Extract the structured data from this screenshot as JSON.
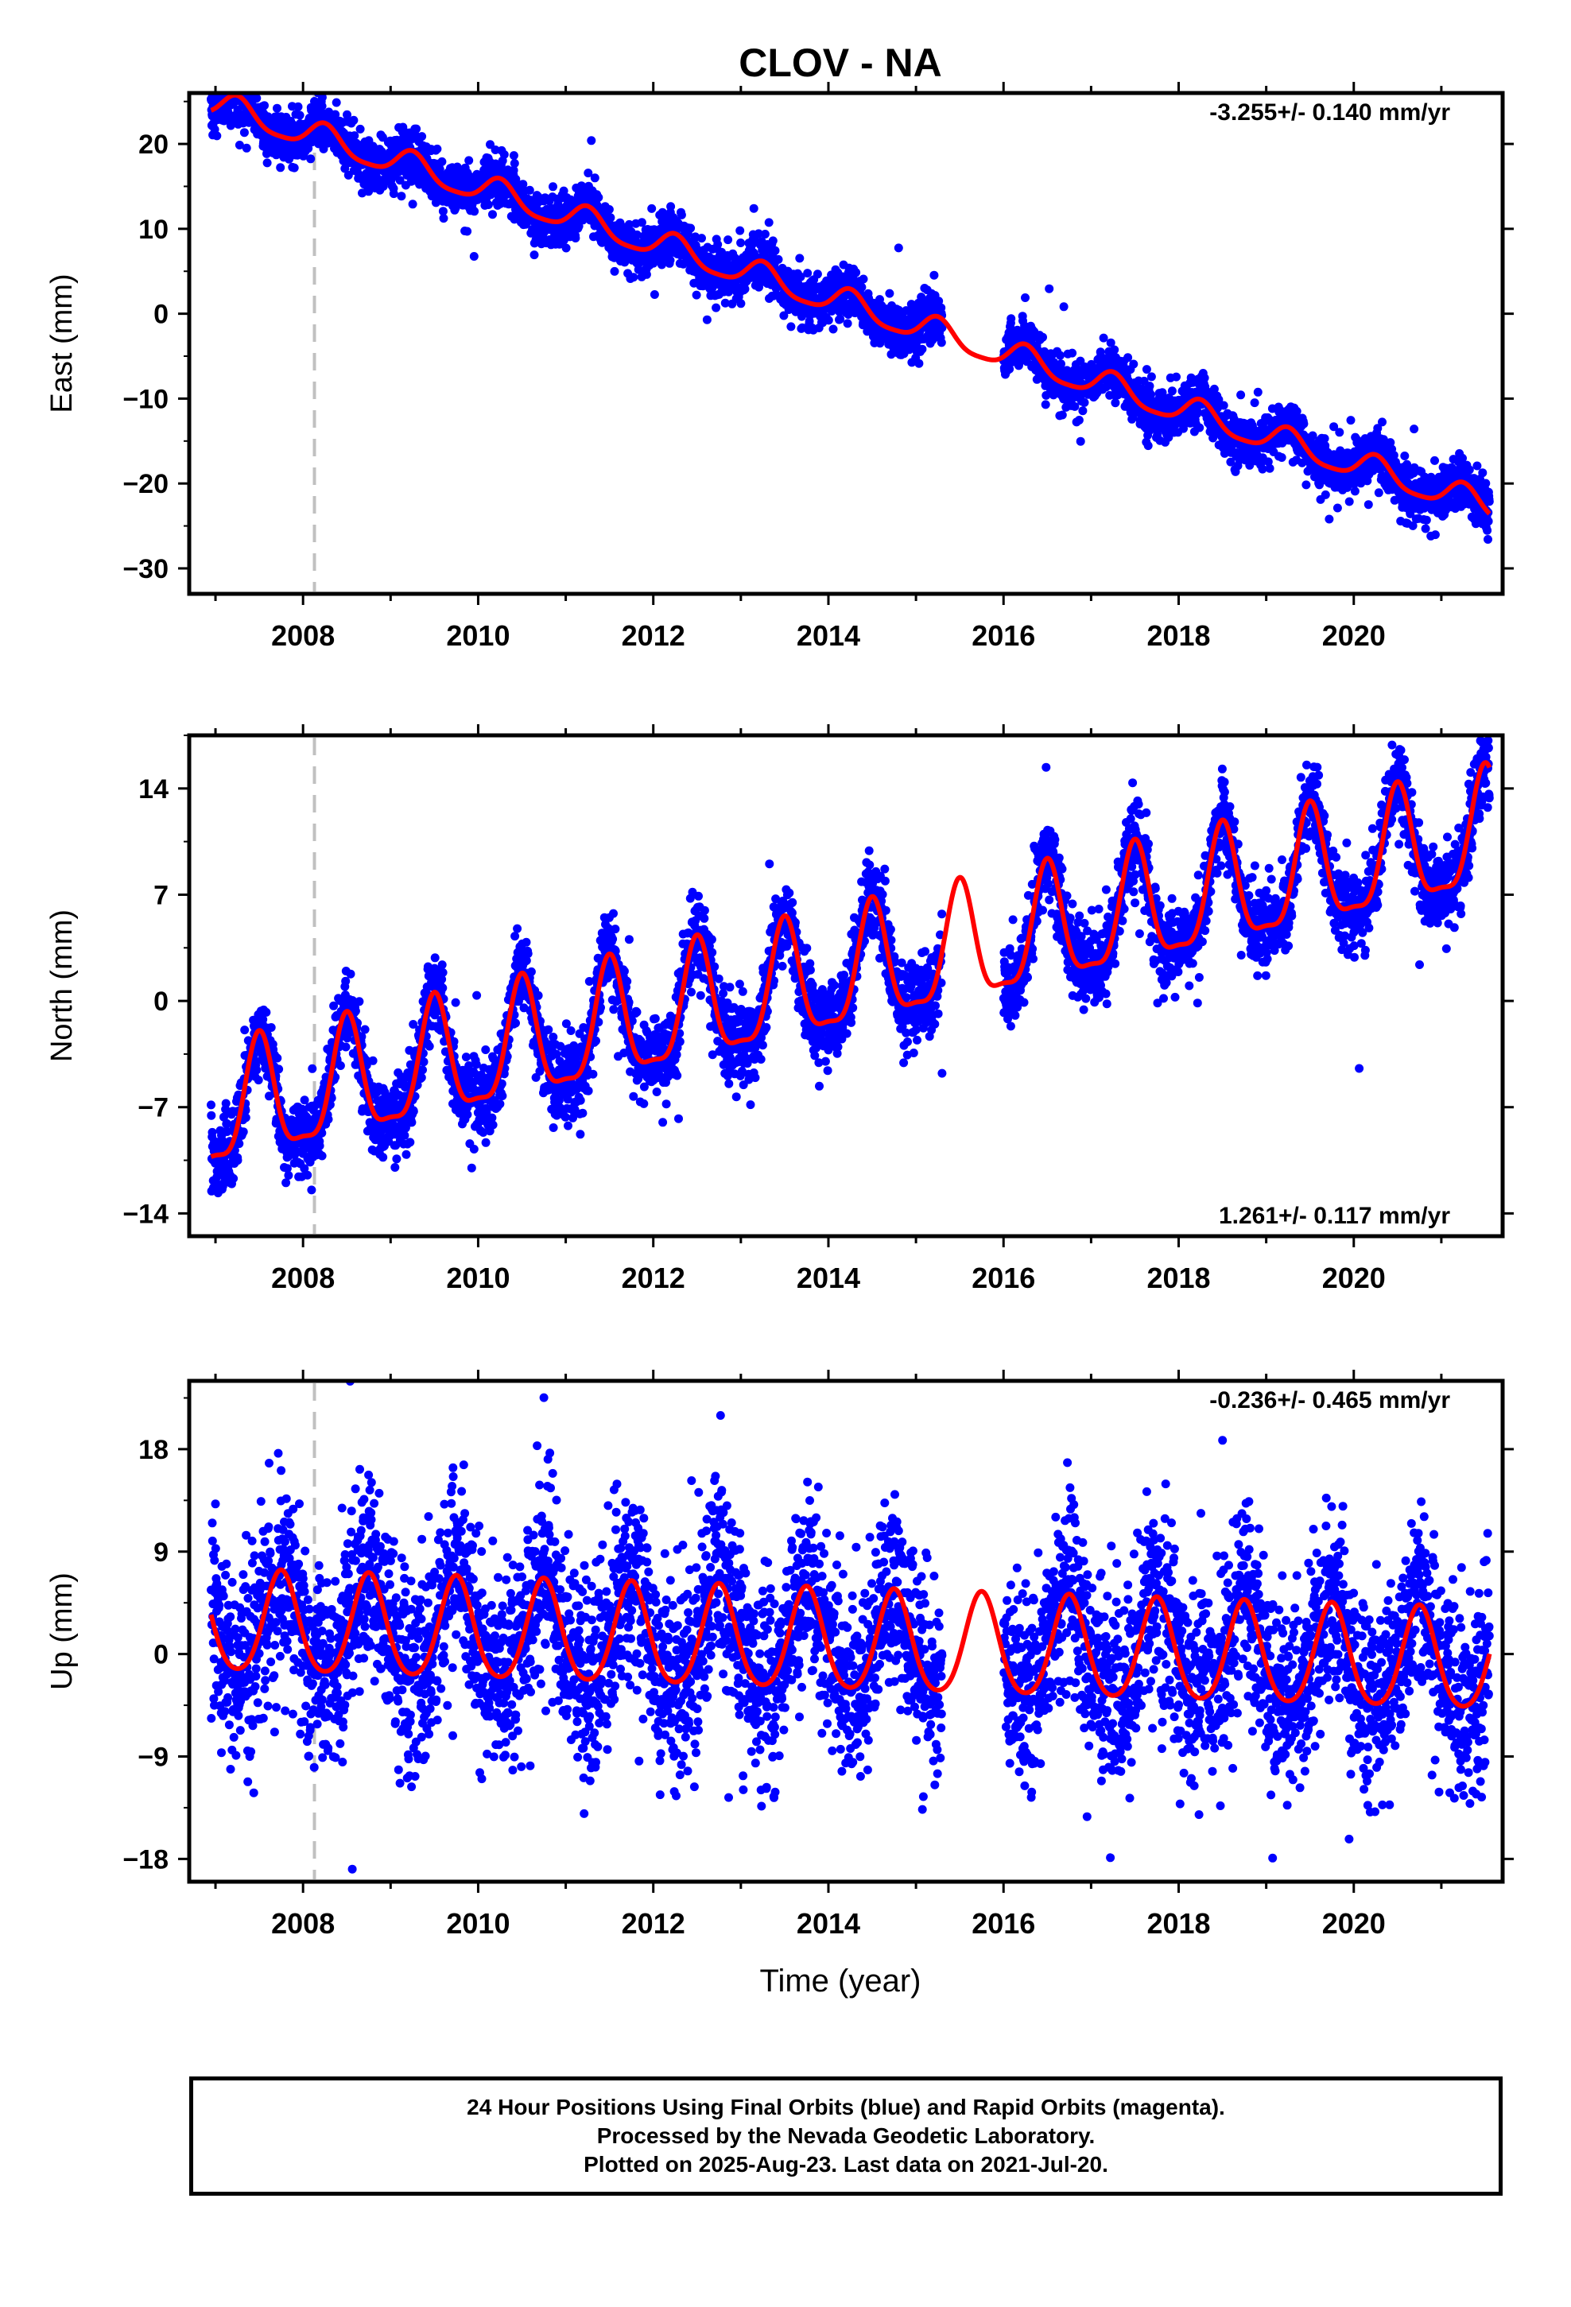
{
  "title": "CLOV - NA",
  "xlabel": "Time (year)",
  "colors": {
    "points": "#0000ff",
    "model": "#ff0000",
    "rapid": "#ff00ff",
    "event_line": "#c0c0c0",
    "axis": "#000000"
  },
  "caption": {
    "line1": "24 Hour Positions Using Final Orbits (blue) and Rapid Orbits (magenta).",
    "line2": "Processed by the Nevada Geodetic Laboratory.",
    "line3": "Plotted on 2025-Aug-23. Last data on 2021-Jul-20."
  },
  "chart_data": [
    {
      "type": "scatter",
      "component": "East",
      "ylabel": "East (mm)",
      "rate_label": "-3.255+/- 0.140 mm/yr",
      "xlim": [
        2006.7,
        2021.7
      ],
      "ylim": [
        -33,
        26
      ],
      "xticks": [
        2008,
        2010,
        2012,
        2014,
        2016,
        2018,
        2020
      ],
      "yticks": [
        20,
        10,
        0,
        -10,
        -20,
        -30
      ],
      "event_line_x": 2008.13,
      "data_gap": [
        2015.3,
        2016.0
      ],
      "model": {
        "offset": 24.9,
        "trend_mm_per_yr": -3.255,
        "t0": 2006.9,
        "annual_amp": 1.6,
        "annual_phase_year": 0.25,
        "semiannual_amp": 0.35
      },
      "scatter_noise_mm": 1.5,
      "sample_points": [
        {
          "x": 2007.0,
          "y": 23.5
        },
        {
          "x": 2008.0,
          "y": 20.0
        },
        {
          "x": 2009.0,
          "y": 16.5
        },
        {
          "x": 2010.0,
          "y": 12.0
        },
        {
          "x": 2011.0,
          "y": 10.5
        },
        {
          "x": 2012.0,
          "y": 7.0
        },
        {
          "x": 2013.0,
          "y": 3.0
        },
        {
          "x": 2014.0,
          "y": 0.5
        },
        {
          "x": 2015.0,
          "y": -3.0
        },
        {
          "x": 2016.0,
          "y": -6.0
        },
        {
          "x": 2017.0,
          "y": -9.0
        },
        {
          "x": 2018.0,
          "y": -12.5
        },
        {
          "x": 2019.0,
          "y": -15.5
        },
        {
          "x": 2020.0,
          "y": -19.0
        },
        {
          "x": 2021.0,
          "y": -22.0
        },
        {
          "x": 2021.5,
          "y": -26.0
        }
      ]
    },
    {
      "type": "scatter",
      "component": "North",
      "ylabel": "North (mm)",
      "rate_label": "1.261+/- 0.117 mm/yr",
      "xlim": [
        2006.7,
        2021.7
      ],
      "ylim": [
        -15.5,
        17.5
      ],
      "xticks": [
        2008,
        2010,
        2012,
        2014,
        2016,
        2018,
        2020
      ],
      "yticks": [
        14,
        7,
        0,
        -7,
        -14
      ],
      "event_line_x": 2008.13,
      "data_gap": [
        2015.3,
        2016.0
      ],
      "model": {
        "offset": -7.6,
        "trend_mm_per_yr": 1.261,
        "t0": 2006.9,
        "annual_amp": 3.8,
        "annual_phase_year": 0.5,
        "semiannual_amp": 1.1
      },
      "scatter_noise_mm": 1.3,
      "sample_points": [
        {
          "x": 2007.0,
          "y": -12.0
        },
        {
          "x": 2007.5,
          "y": -3.5
        },
        {
          "x": 2008.5,
          "y": -2.0
        },
        {
          "x": 2009.5,
          "y": -0.8
        },
        {
          "x": 2010.5,
          "y": 0.5
        },
        {
          "x": 2011.5,
          "y": 1.8
        },
        {
          "x": 2012.5,
          "y": 3.0
        },
        {
          "x": 2013.5,
          "y": 4.3
        },
        {
          "x": 2014.5,
          "y": 5.5
        },
        {
          "x": 2015.5,
          "y": 6.8
        },
        {
          "x": 2016.5,
          "y": 8.1
        },
        {
          "x": 2017.5,
          "y": 9.4
        },
        {
          "x": 2018.5,
          "y": 10.7
        },
        {
          "x": 2019.5,
          "y": 12.0
        },
        {
          "x": 2020.5,
          "y": 13.2
        },
        {
          "x": 2021.5,
          "y": 14.5
        }
      ]
    },
    {
      "type": "scatter",
      "component": "Up",
      "ylabel": "Up (mm)",
      "rate_label": "-0.236+/- 0.465 mm/yr",
      "xlim": [
        2006.7,
        2021.7
      ],
      "ylim": [
        -20,
        24
      ],
      "xticks": [
        2008,
        2010,
        2012,
        2014,
        2016,
        2018,
        2020
      ],
      "yticks": [
        18,
        9,
        0,
        -9,
        -18
      ],
      "event_line_x": 2008.13,
      "data_gap": [
        2015.3,
        2016.0
      ],
      "model": {
        "offset": 2.6,
        "trend_mm_per_yr": -0.236,
        "t0": 2006.9,
        "annual_amp": 4.4,
        "annual_phase_year": 0.75,
        "semiannual_amp": 0.6
      },
      "scatter_noise_mm": 4.2,
      "sample_points": [
        {
          "x": 2007.0,
          "y": 5.5
        },
        {
          "x": 2007.3,
          "y": -1.5
        },
        {
          "x": 2007.7,
          "y": 7.0
        },
        {
          "x": 2008.3,
          "y": -2.5
        },
        {
          "x": 2009.3,
          "y": -3.0
        },
        {
          "x": 2010.3,
          "y": -3.2
        },
        {
          "x": 2011.8,
          "y": 5.0
        },
        {
          "x": 2013.3,
          "y": -4.0
        },
        {
          "x": 2014.7,
          "y": 4.5
        },
        {
          "x": 2015.7,
          "y": 4.3
        },
        {
          "x": 2017.3,
          "y": -5.0
        },
        {
          "x": 2019.3,
          "y": -5.5
        },
        {
          "x": 2020.3,
          "y": -5.8
        },
        {
          "x": 2021.3,
          "y": -6.0
        }
      ]
    }
  ]
}
